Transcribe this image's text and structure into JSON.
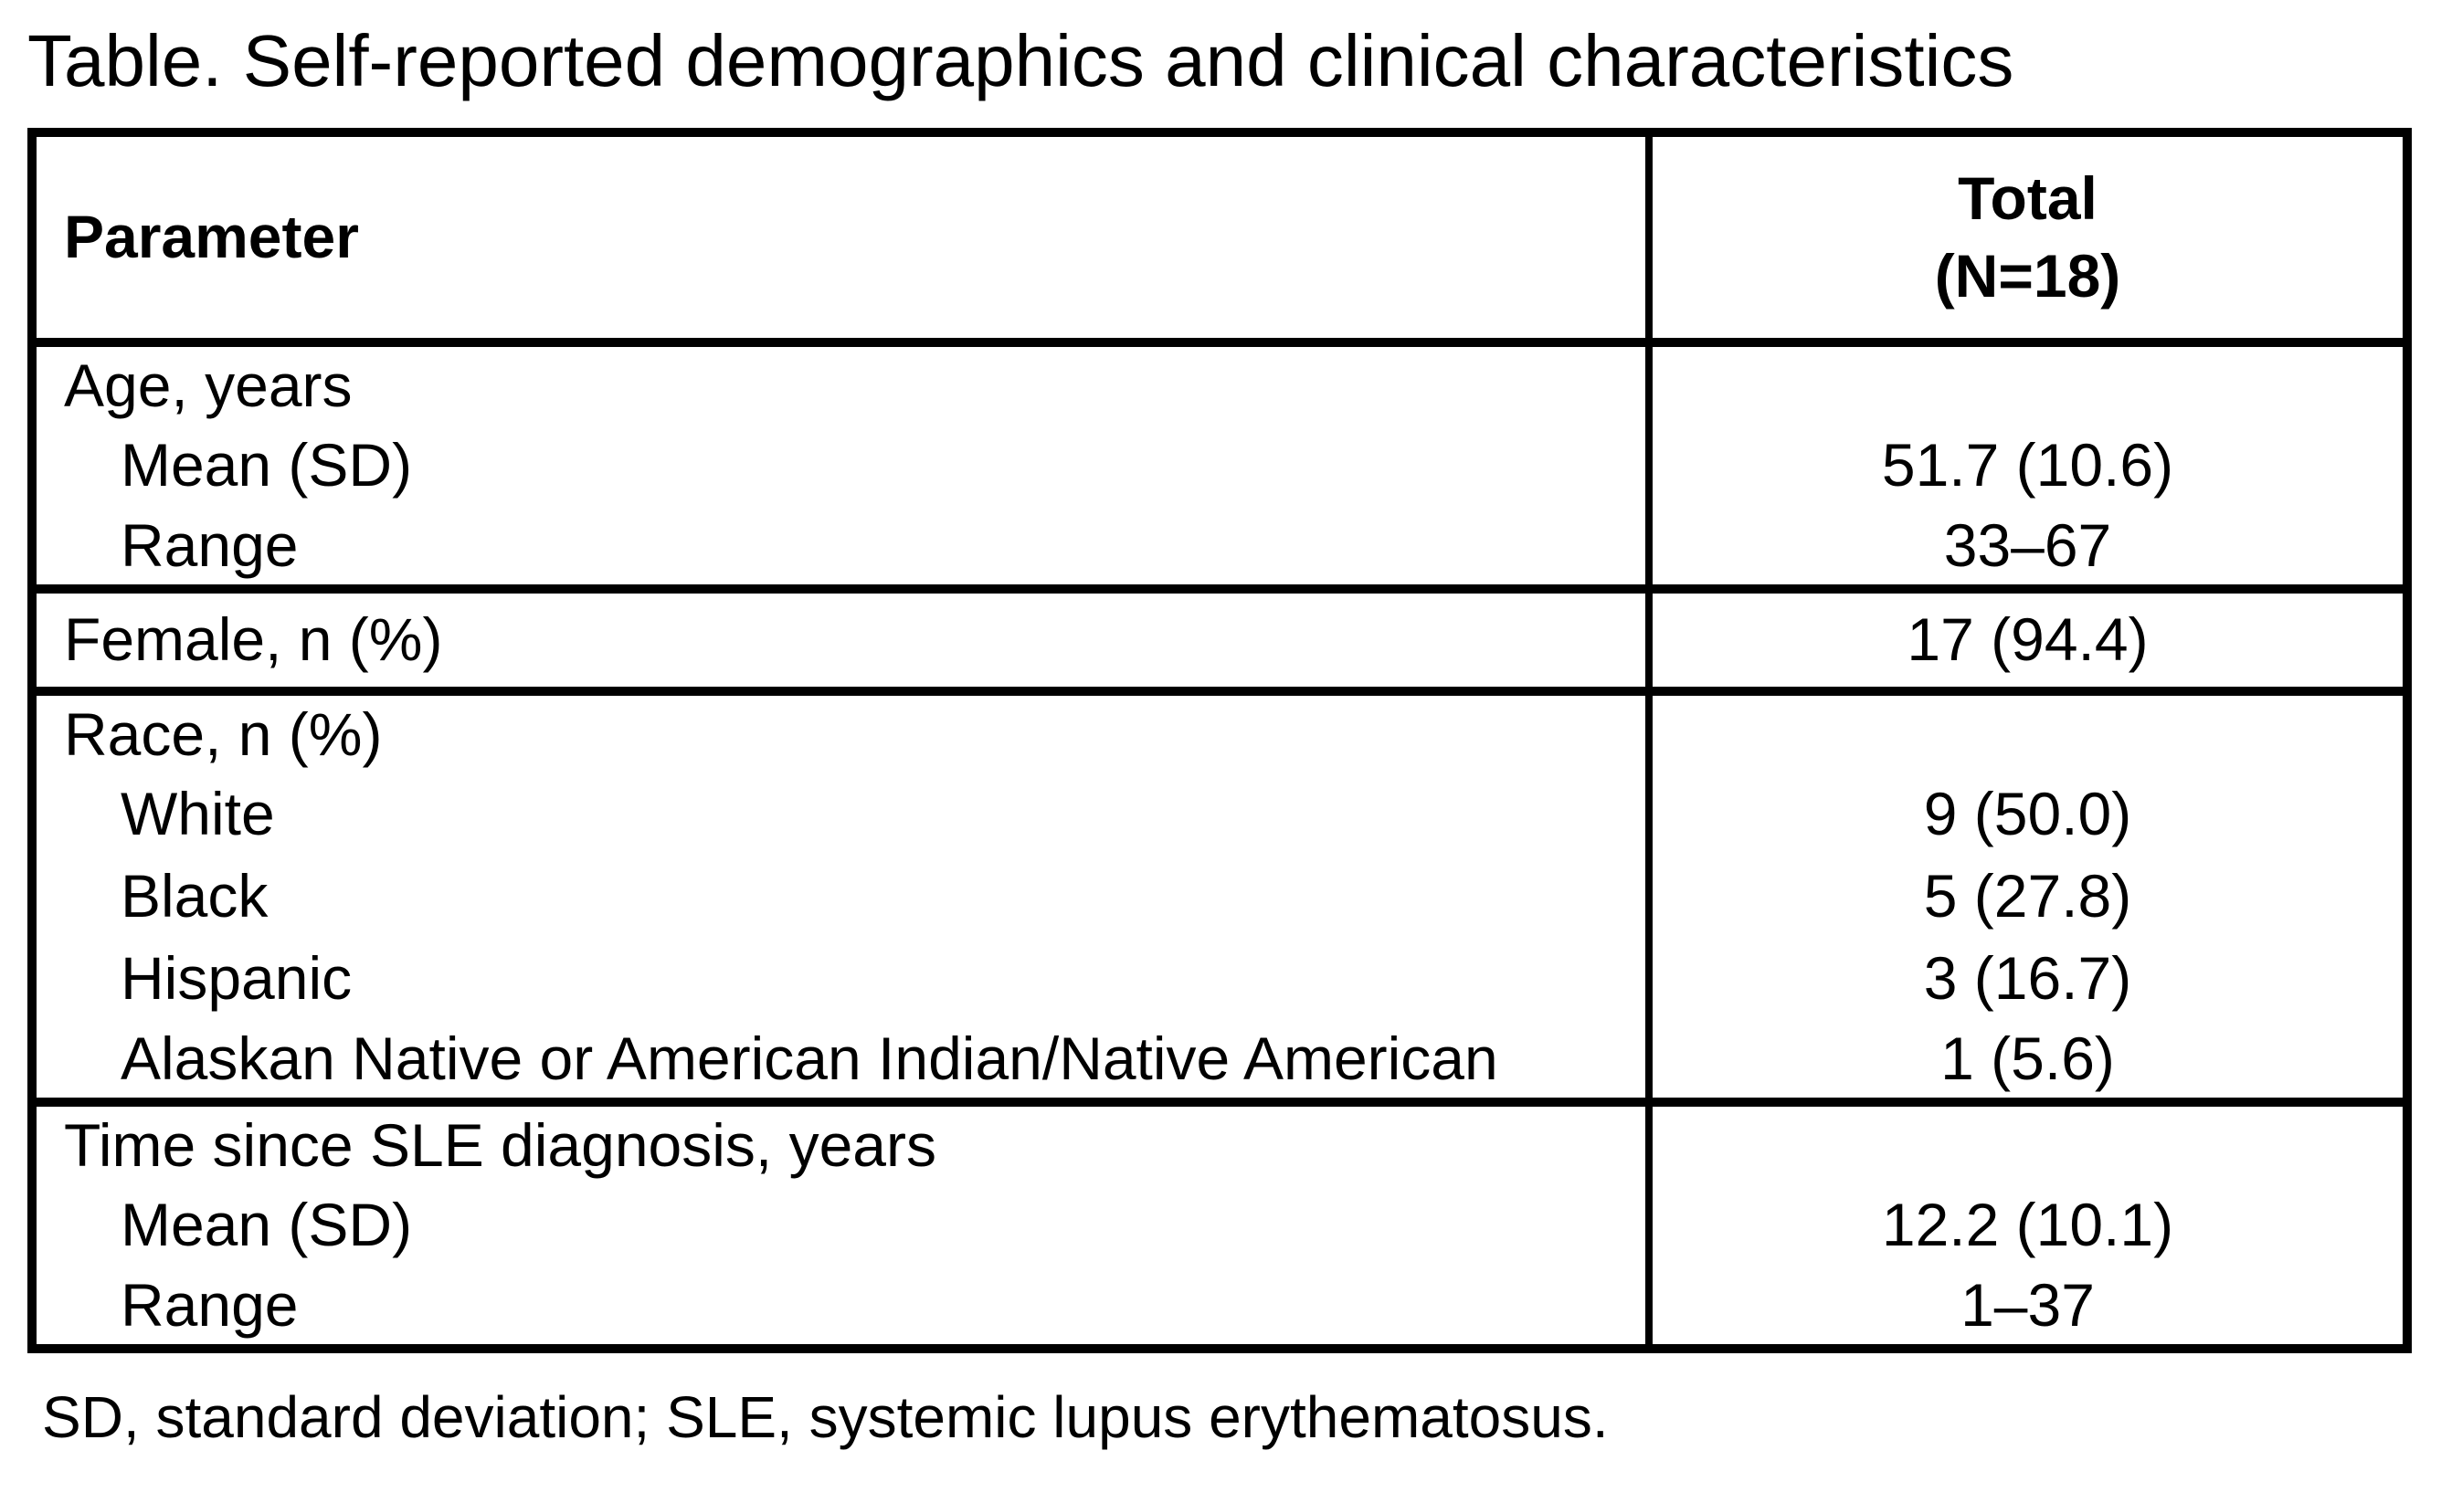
{
  "title": "Table. Self-reported demographics and clinical characteristics",
  "footnote": "SD, standard deviation; SLE, systemic lupus erythematosus.",
  "colors": {
    "text": "#000000",
    "background": "#ffffff",
    "border": "#000000"
  },
  "table": {
    "header": {
      "parameter_label": "Parameter",
      "total_label_line1": "Total",
      "total_label_line2": "(N=18)"
    },
    "sections": [
      {
        "name": "age",
        "rows": [
          {
            "label": "Age, years",
            "indent": false,
            "value": ""
          },
          {
            "label": "Mean (SD)",
            "indent": true,
            "value": "51.7 (10.6)"
          },
          {
            "label": "Range",
            "indent": true,
            "value": "33–67"
          }
        ]
      },
      {
        "name": "sex",
        "rows": [
          {
            "label": "Female, n (%)",
            "indent": false,
            "value": "17 (94.4)",
            "tall": true
          }
        ]
      },
      {
        "name": "race",
        "rows": [
          {
            "label": "Race, n (%)",
            "indent": false,
            "value": ""
          },
          {
            "label": "White",
            "indent": true,
            "value": "9 (50.0)"
          },
          {
            "label": "Black",
            "indent": true,
            "value": "5 (27.8)"
          },
          {
            "label": "Hispanic",
            "indent": true,
            "value": "3 (16.7)"
          },
          {
            "label": "Alaskan Native or American Indian/Native American",
            "indent": true,
            "value": "1 (5.6)"
          }
        ]
      },
      {
        "name": "time-since-diagnosis",
        "rows": [
          {
            "label": "Time since SLE diagnosis, years",
            "indent": false,
            "value": ""
          },
          {
            "label": "Mean (SD)",
            "indent": true,
            "value": "12.2 (10.1)"
          },
          {
            "label": "Range",
            "indent": true,
            "value": "1–37"
          }
        ]
      }
    ]
  }
}
